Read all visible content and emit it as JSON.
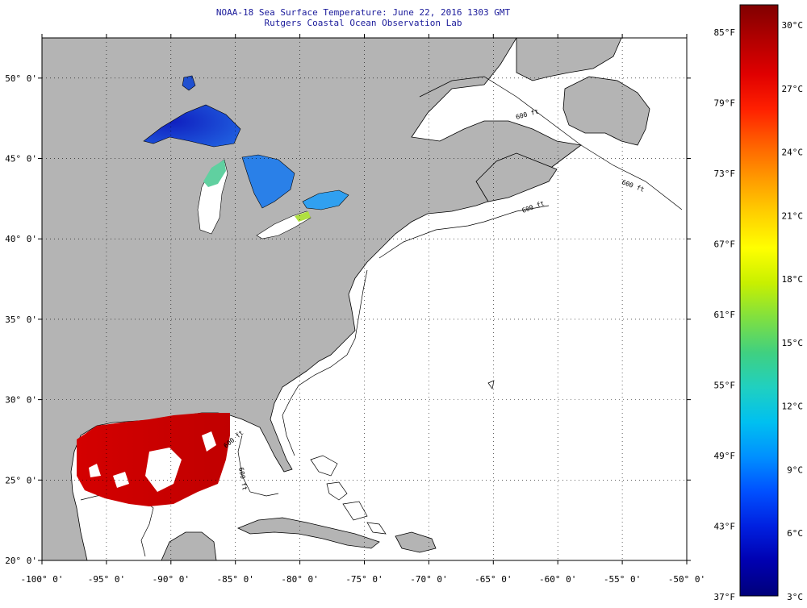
{
  "title": "NOAA-18 Sea Surface Temperature:  June 22, 2016 1303 GMT",
  "subtitle": "Rutgers Coastal Ocean Observation Lab",
  "map": {
    "lon_range": [
      -100,
      -50
    ],
    "lat_range": [
      20,
      52.5
    ],
    "gridlines": "dotted",
    "lon_ticks": [
      "-100° 0'",
      "-95° 0'",
      "-90° 0'",
      "-85° 0'",
      "-80° 0'",
      "-75° 0'",
      "-70° 0'",
      "-65° 0'",
      "-60° 0'",
      "-55° 0'",
      "-50° 0'"
    ],
    "lat_ticks": [
      "50° 0'",
      "45° 0'",
      "40° 0'",
      "35° 0'",
      "30° 0'",
      "25° 0'",
      "20° 0'"
    ],
    "land_color": "#b4b4b4",
    "ocean_color": "#ffffff",
    "bathymetry_labels": [
      "600 ft",
      "600 ft",
      "600 ft",
      "600 ft",
      "600 ft"
    ]
  },
  "colorbar": {
    "fahrenheit_labels": [
      "85°F",
      "79°F",
      "73°F",
      "67°F",
      "61°F",
      "55°F",
      "49°F",
      "43°F",
      "37°F"
    ],
    "celsius_labels": [
      "30°C",
      "27°C",
      "24°C",
      "21°C",
      "18°C",
      "15°C",
      "12°C",
      "9°C",
      "6°C",
      "3°C"
    ],
    "colors": [
      "#800000",
      "#b20000",
      "#e00000",
      "#ff2000",
      "#ff6000",
      "#ff9a00",
      "#ffd000",
      "#ffff00",
      "#c8f000",
      "#80e040",
      "#40d080",
      "#20d0c0",
      "#00c0f0",
      "#0090ff",
      "#0050ff",
      "#0020e0",
      "#0000b0",
      "#00007a"
    ]
  }
}
